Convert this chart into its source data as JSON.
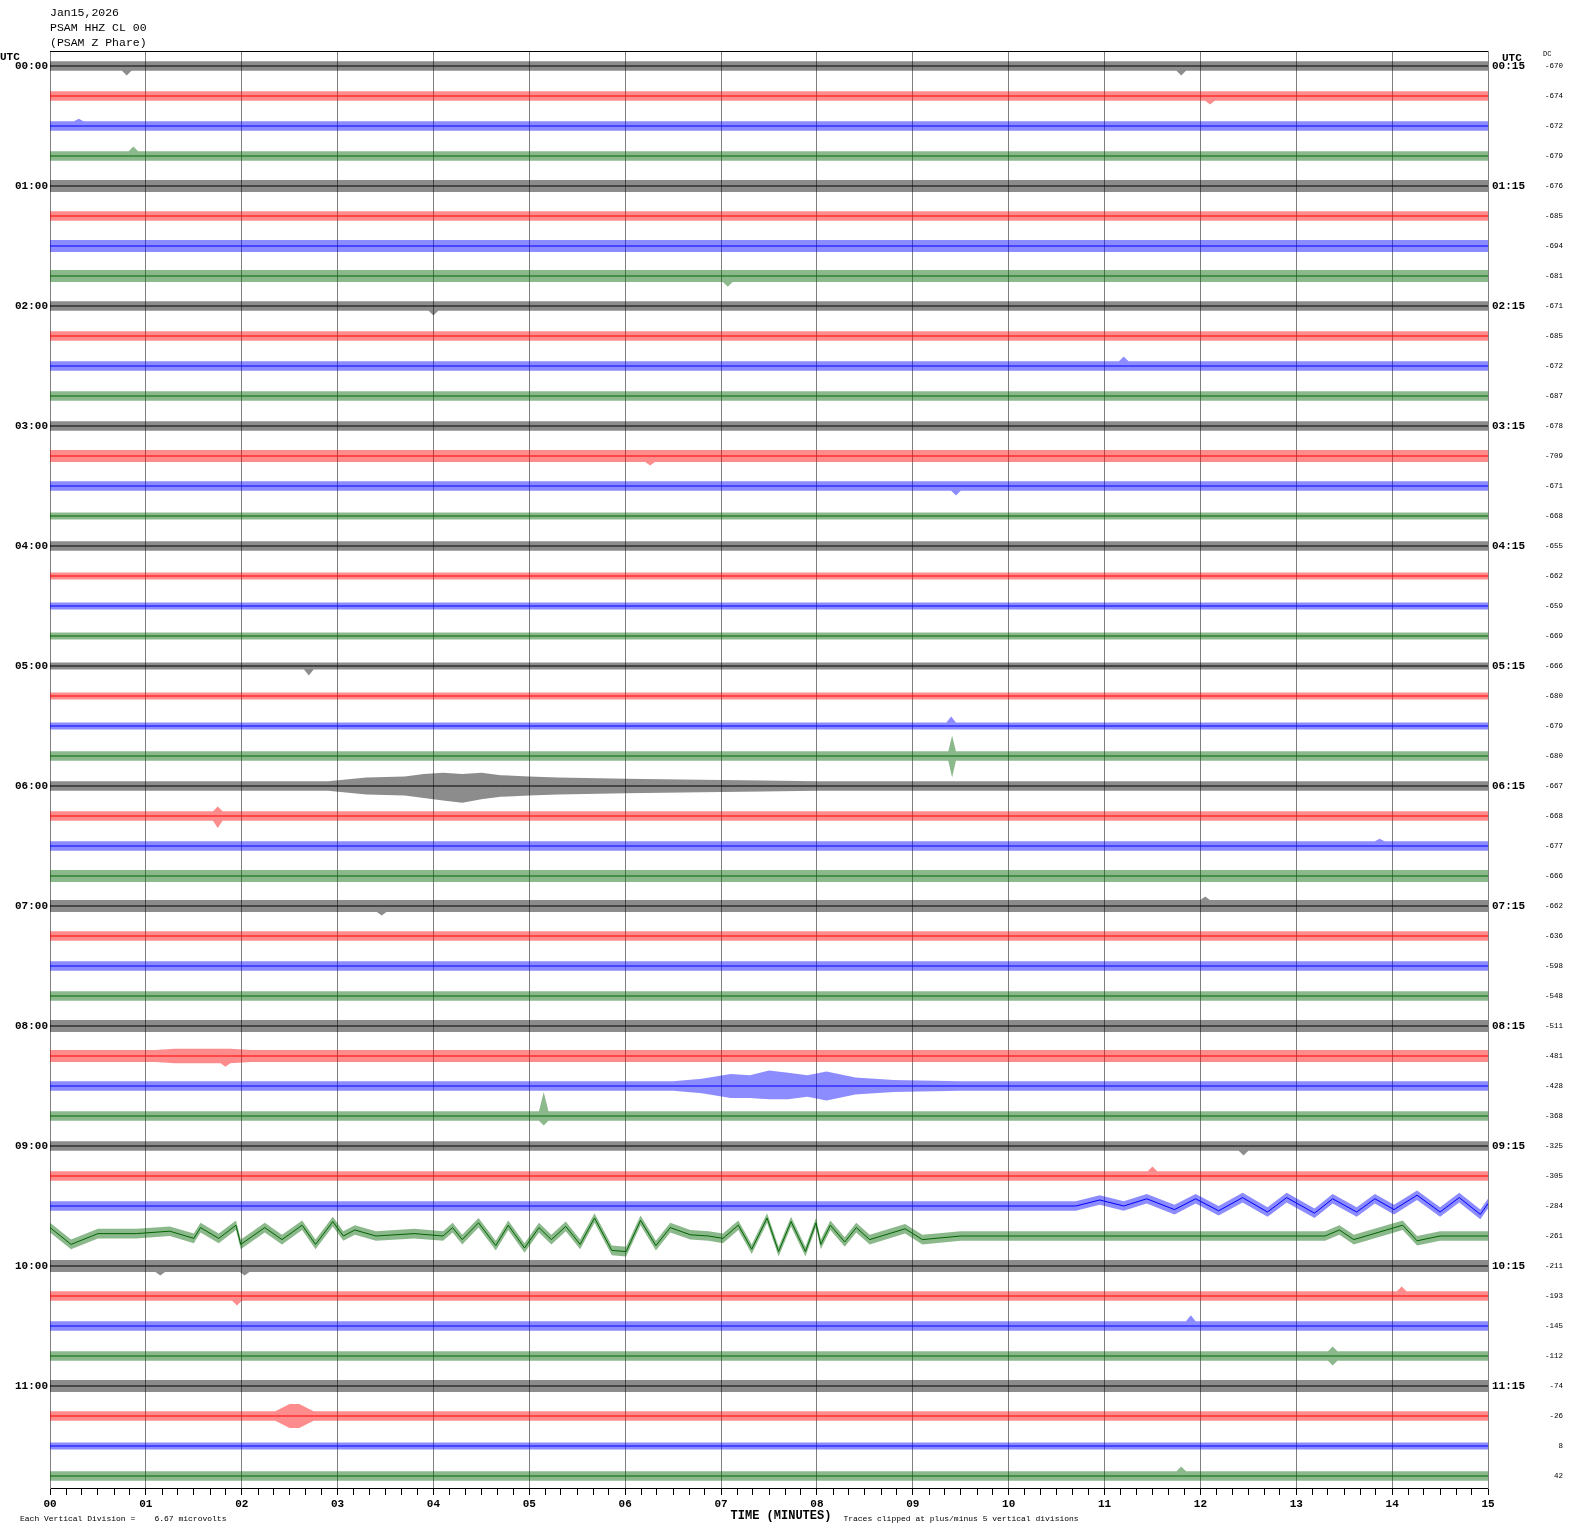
{
  "chart_data": {
    "type": "line",
    "title": "Jan15,2026",
    "subtitle": "PSAM HHZ CL 00",
    "annotations": [
      "(PSAM Z Phare)",
      "DC",
      "Each Vertical Division =    6.67 microvolts",
      "Traces clipped at plus/minus 5 vertical divisions",
      "-670",
      "-674",
      "-672",
      "-679",
      "-676",
      "-685",
      "-694",
      "-681",
      "-671",
      "-685",
      "-672",
      "-687",
      "-678",
      "-709",
      "-671",
      "-668",
      "-655",
      "-662",
      "-659",
      "-669",
      "-666",
      "-680",
      "-679",
      "-680",
      "-667",
      "-668",
      "-677",
      "-666",
      "-662",
      "-636",
      "-598",
      "-548",
      "-511",
      "-481",
      "-428",
      "-368",
      "-325",
      "-305",
      "-284",
      "-261",
      "-211",
      "-193",
      "-145",
      "-112",
      "-74",
      "-26",
      "8",
      "42"
    ],
    "xlabel": "TIME (MINUTES)",
    "ylabel": "UTC",
    "y2label": "UTC",
    "grid": "x",
    "marker": "none",
    "line_style": "solid",
    "xlim": [
      0,
      15
    ],
    "xticks": [
      {
        "value": 0,
        "label": "00"
      },
      {
        "value": 0.17,
        "label": null
      },
      {
        "value": 0.33,
        "label": null
      },
      {
        "value": 0.5,
        "label": null
      },
      {
        "value": 0.67,
        "label": null
      },
      {
        "value": 0.83,
        "label": null
      },
      {
        "value": 1,
        "label": "01"
      },
      {
        "value": 1.17,
        "label": null
      },
      {
        "value": 1.33,
        "label": null
      },
      {
        "value": 1.5,
        "label": null
      },
      {
        "value": 1.67,
        "label": null
      },
      {
        "value": 1.83,
        "label": null
      },
      {
        "value": 2,
        "label": "02"
      },
      {
        "value": 2.17,
        "label": null
      },
      {
        "value": 2.33,
        "label": null
      },
      {
        "value": 2.5,
        "label": null
      },
      {
        "value": 2.67,
        "label": null
      },
      {
        "value": 2.83,
        "label": null
      },
      {
        "value": 3,
        "label": "03"
      },
      {
        "value": 3.17,
        "label": null
      },
      {
        "value": 3.33,
        "label": null
      },
      {
        "value": 3.5,
        "label": null
      },
      {
        "value": 3.67,
        "label": null
      },
      {
        "value": 3.83,
        "label": null
      },
      {
        "value": 4,
        "label": "04"
      },
      {
        "value": 4.17,
        "label": null
      },
      {
        "value": 4.33,
        "label": null
      },
      {
        "value": 4.5,
        "label": null
      },
      {
        "value": 4.67,
        "label": null
      },
      {
        "value": 4.83,
        "label": null
      },
      {
        "value": 5,
        "label": "05"
      },
      {
        "value": 5.17,
        "label": null
      },
      {
        "value": 5.33,
        "label": null
      },
      {
        "value": 5.5,
        "label": null
      },
      {
        "value": 5.67,
        "label": null
      },
      {
        "value": 5.83,
        "label": null
      },
      {
        "value": 6,
        "label": "06"
      },
      {
        "value": 6.17,
        "label": null
      },
      {
        "value": 6.33,
        "label": null
      },
      {
        "value": 6.5,
        "label": null
      },
      {
        "value": 6.67,
        "label": null
      },
      {
        "value": 6.83,
        "label": null
      },
      {
        "value": 7,
        "label": "07"
      },
      {
        "value": 7.17,
        "label": null
      },
      {
        "value": 7.33,
        "label": null
      },
      {
        "value": 7.5,
        "label": null
      },
      {
        "value": 7.67,
        "label": null
      },
      {
        "value": 7.83,
        "label": null
      },
      {
        "value": 8,
        "label": "08"
      },
      {
        "value": 8.17,
        "label": null
      },
      {
        "value": 8.33,
        "label": null
      },
      {
        "value": 8.5,
        "label": null
      },
      {
        "value": 8.67,
        "label": null
      },
      {
        "value": 8.83,
        "label": null
      },
      {
        "value": 9,
        "label": "09"
      },
      {
        "value": 9.17,
        "label": null
      },
      {
        "value": 9.33,
        "label": null
      },
      {
        "value": 9.5,
        "label": null
      },
      {
        "value": 9.67,
        "label": null
      },
      {
        "value": 9.83,
        "label": null
      },
      {
        "value": 10,
        "label": "10"
      },
      {
        "value": 10.17,
        "label": null
      },
      {
        "value": 10.33,
        "label": null
      },
      {
        "value": 10.5,
        "label": null
      },
      {
        "value": 10.67,
        "label": null
      },
      {
        "value": 10.83,
        "label": null
      },
      {
        "value": 11,
        "label": "11"
      },
      {
        "value": 11.17,
        "label": null
      },
      {
        "value": 11.33,
        "label": null
      },
      {
        "value": 11.5,
        "label": null
      },
      {
        "value": 11.67,
        "label": null
      },
      {
        "value": 11.83,
        "label": null
      },
      {
        "value": 12,
        "label": "12"
      },
      {
        "value": 12.17,
        "label": null
      },
      {
        "value": 12.33,
        "label": null
      },
      {
        "value": 12.5,
        "label": null
      },
      {
        "value": 12.67,
        "label": null
      },
      {
        "value": 12.83,
        "label": null
      },
      {
        "value": 13,
        "label": "13"
      },
      {
        "value": 13.17,
        "label": null
      },
      {
        "value": 13.33,
        "label": null
      },
      {
        "value": 13.5,
        "label": null
      },
      {
        "value": 13.67,
        "label": null
      },
      {
        "value": 13.83,
        "label": null
      },
      {
        "value": 14,
        "label": "14"
      },
      {
        "value": 14.17,
        "label": null
      },
      {
        "value": 14.33,
        "label": null
      },
      {
        "value": 14.5,
        "label": null
      },
      {
        "value": 14.67,
        "label": null
      },
      {
        "value": 14.83,
        "label": null
      },
      {
        "value": 15,
        "label": "15"
      }
    ],
    "ylim": [
      11.85,
      -0.125
    ],
    "yticks": [
      {
        "value": 0,
        "label": "00:00"
      },
      {
        "value": 1,
        "label": "01:00"
      },
      {
        "value": 2,
        "label": "02:00"
      },
      {
        "value": 3,
        "label": "03:00"
      },
      {
        "value": 4,
        "label": "04:00"
      },
      {
        "value": 5,
        "label": "05:00"
      },
      {
        "value": 6,
        "label": "06:00"
      },
      {
        "value": 7,
        "label": "07:00"
      },
      {
        "value": 8,
        "label": "08:00"
      },
      {
        "value": 9,
        "label": "09:00"
      },
      {
        "value": 10,
        "label": "10:00"
      },
      {
        "value": 11,
        "label": "11:00"
      }
    ],
    "y2lim": [
      12.1,
      0.125
    ],
    "y2ticks": [
      {
        "value": 0.25,
        "label": "00:15"
      },
      {
        "value": 1.25,
        "label": "01:15"
      },
      {
        "value": 2.25,
        "label": "02:15"
      },
      {
        "value": 3.25,
        "label": "03:15"
      },
      {
        "value": 4.25,
        "label": "04:15"
      },
      {
        "value": 5.25,
        "label": "05:15"
      },
      {
        "value": 6.25,
        "label": "06:15"
      },
      {
        "value": 7.25,
        "label": "07:15"
      },
      {
        "value": 8.25,
        "label": "08:15"
      },
      {
        "value": 9.25,
        "label": "09:15"
      },
      {
        "value": 10.25,
        "label": "10:15"
      },
      {
        "value": 11.25,
        "label": "11:15"
      }
    ],
    "series": [
      {
        "color": "#000000",
        "x": [
          0,
          0.75,
          0.8,
          0.85,
          5,
          10,
          11.75,
          11.8,
          11.85,
          15
        ],
        "values": [
          0,
          0,
          0,
          0,
          0,
          0,
          0,
          0,
          0,
          0
        ],
        "lower": [
          -0.04,
          -0.04,
          -0.04,
          -0.04,
          -0.04,
          -0.04,
          -0.04,
          -0.04,
          -0.04,
          -0.04
        ],
        "upper": [
          0.04,
          0.04,
          0.08,
          0.04,
          0.04,
          0.04,
          0.04,
          0.08,
          0.04,
          0.04
        ]
      },
      {
        "color": "#ff0000",
        "x": [
          0,
          5,
          10,
          12.05,
          12.1,
          12.15,
          15
        ],
        "values": [
          0.25,
          0.25,
          0.25,
          0.25,
          0.25,
          0.25,
          0.25
        ],
        "lower": [
          0.21,
          0.21,
          0.21,
          0.21,
          0.21,
          0.21,
          0.21
        ],
        "upper": [
          0.29,
          0.29,
          0.29,
          0.29,
          0.32,
          0.29,
          0.29
        ]
      },
      {
        "color": "#0000ff",
        "x": [
          0,
          0.25,
          0.3,
          0.35,
          5,
          10,
          15
        ],
        "values": [
          0.5,
          0.5,
          0.5,
          0.5,
          0.5,
          0.5,
          0.5
        ],
        "lower": [
          0.46,
          0.46,
          0.44,
          0.46,
          0.46,
          0.46,
          0.46
        ],
        "upper": [
          0.54,
          0.54,
          0.54,
          0.54,
          0.54,
          0.54,
          0.54
        ]
      },
      {
        "color": "#006400",
        "x": [
          0,
          0.82,
          0.87,
          0.92,
          5,
          10,
          15
        ],
        "values": [
          0.75,
          0.75,
          0.75,
          0.75,
          0.75,
          0.75,
          0.75
        ],
        "lower": [
          0.71,
          0.71,
          0.67,
          0.71,
          0.71,
          0.71,
          0.71
        ],
        "upper": [
          0.79,
          0.79,
          0.79,
          0.79,
          0.79,
          0.79,
          0.79
        ]
      },
      {
        "color": "#000000",
        "x": [
          0,
          5,
          10,
          15
        ],
        "values": [
          1,
          1,
          1,
          1
        ],
        "lower": [
          0.95,
          0.95,
          0.95,
          0.95
        ],
        "upper": [
          1.05,
          1.05,
          1.05,
          1.05
        ]
      },
      {
        "color": "#ff0000",
        "x": [
          0,
          5,
          10,
          15
        ],
        "values": [
          1.25,
          1.25,
          1.25,
          1.25
        ],
        "lower": [
          1.21,
          1.21,
          1.21,
          1.21
        ],
        "upper": [
          1.29,
          1.29,
          1.29,
          1.29
        ]
      },
      {
        "color": "#0000ff",
        "x": [
          0,
          5,
          10,
          15
        ],
        "values": [
          1.5,
          1.5,
          1.5,
          1.5
        ],
        "lower": [
          1.45,
          1.45,
          1.45,
          1.45
        ],
        "upper": [
          1.55,
          1.55,
          1.55,
          1.55
        ]
      },
      {
        "color": "#006400",
        "x": [
          0,
          5,
          7.02,
          7.07,
          7.12,
          10,
          15
        ],
        "values": [
          1.75,
          1.75,
          1.75,
          1.75,
          1.75,
          1.75,
          1.75
        ],
        "lower": [
          1.7,
          1.7,
          1.7,
          1.7,
          1.7,
          1.7,
          1.7
        ],
        "upper": [
          1.8,
          1.8,
          1.8,
          1.84,
          1.8,
          1.8,
          1.8
        ]
      },
      {
        "color": "#000000",
        "x": [
          0,
          3.95,
          4,
          4.05,
          10,
          15
        ],
        "values": [
          2,
          2,
          2,
          2,
          2,
          2
        ],
        "lower": [
          1.96,
          1.96,
          1.96,
          1.96,
          1.96,
          1.96
        ],
        "upper": [
          2.04,
          2.04,
          2.08,
          2.04,
          2.04,
          2.04
        ]
      },
      {
        "color": "#ff0000",
        "x": [
          0,
          5,
          10,
          15
        ],
        "values": [
          2.25,
          2.25,
          2.25,
          2.25
        ],
        "lower": [
          2.21,
          2.21,
          2.21,
          2.21
        ],
        "upper": [
          2.29,
          2.29,
          2.29,
          2.29
        ]
      },
      {
        "color": "#0000ff",
        "x": [
          0,
          5,
          11.15,
          11.2,
          11.25,
          15
        ],
        "values": [
          2.5,
          2.5,
          2.5,
          2.5,
          2.5,
          2.5
        ],
        "lower": [
          2.46,
          2.46,
          2.46,
          2.42,
          2.46,
          2.46
        ],
        "upper": [
          2.54,
          2.54,
          2.54,
          2.54,
          2.54,
          2.54
        ]
      },
      {
        "color": "#006400",
        "x": [
          0,
          5,
          10,
          15
        ],
        "values": [
          2.75,
          2.75,
          2.75,
          2.75
        ],
        "lower": [
          2.71,
          2.71,
          2.71,
          2.71
        ],
        "upper": [
          2.79,
          2.79,
          2.79,
          2.79
        ]
      },
      {
        "color": "#000000",
        "x": [
          0,
          5,
          10,
          15
        ],
        "values": [
          3,
          3,
          3,
          3
        ],
        "lower": [
          2.96,
          2.96,
          2.96,
          2.96
        ],
        "upper": [
          3.04,
          3.04,
          3.04,
          3.04
        ]
      },
      {
        "color": "#ff0000",
        "x": [
          0,
          5,
          6.21,
          6.26,
          6.31,
          10,
          15
        ],
        "values": [
          3.25,
          3.25,
          3.25,
          3.25,
          3.25,
          3.25,
          3.25
        ],
        "lower": [
          3.2,
          3.2,
          3.2,
          3.2,
          3.2,
          3.2,
          3.2
        ],
        "upper": [
          3.3,
          3.3,
          3.3,
          3.33,
          3.3,
          3.3,
          3.3
        ]
      },
      {
        "color": "#0000ff",
        "x": [
          0,
          5,
          9.4,
          9.45,
          9.5,
          15
        ],
        "values": [
          3.5,
          3.5,
          3.5,
          3.5,
          3.5,
          3.5
        ],
        "lower": [
          3.46,
          3.46,
          3.46,
          3.46,
          3.46,
          3.46
        ],
        "upper": [
          3.54,
          3.54,
          3.54,
          3.58,
          3.54,
          3.54
        ]
      },
      {
        "color": "#006400",
        "x": [
          0,
          5,
          10,
          15
        ],
        "values": [
          3.75,
          3.75,
          3.75,
          3.75
        ],
        "lower": [
          3.72,
          3.72,
          3.72,
          3.72
        ],
        "upper": [
          3.78,
          3.78,
          3.78,
          3.78
        ]
      },
      {
        "color": "#000000",
        "x": [
          0,
          5,
          10,
          15
        ],
        "values": [
          4,
          4,
          4,
          4
        ],
        "lower": [
          3.96,
          3.96,
          3.96,
          3.96
        ],
        "upper": [
          4.04,
          4.04,
          4.04,
          4.04
        ]
      },
      {
        "color": "#ff0000",
        "x": [
          0,
          5,
          10,
          15
        ],
        "values": [
          4.25,
          4.25,
          4.25,
          4.25
        ],
        "lower": [
          4.22,
          4.22,
          4.22,
          4.22
        ],
        "upper": [
          4.28,
          4.28,
          4.28,
          4.28
        ]
      },
      {
        "color": "#0000ff",
        "x": [
          0,
          5,
          10,
          15
        ],
        "values": [
          4.5,
          4.5,
          4.5,
          4.5
        ],
        "lower": [
          4.47,
          4.47,
          4.47,
          4.47
        ],
        "upper": [
          4.53,
          4.53,
          4.53,
          4.53
        ]
      },
      {
        "color": "#006400",
        "x": [
          0,
          5,
          10,
          15
        ],
        "values": [
          4.75,
          4.75,
          4.75,
          4.75
        ],
        "lower": [
          4.72,
          4.72,
          4.72,
          4.72
        ],
        "upper": [
          4.78,
          4.78,
          4.78,
          4.78
        ]
      },
      {
        "color": "#000000",
        "x": [
          0,
          2.65,
          2.7,
          2.75,
          10,
          15
        ],
        "values": [
          5,
          5,
          5,
          5,
          5,
          5
        ],
        "lower": [
          4.97,
          4.97,
          4.97,
          4.97,
          4.97,
          4.97
        ],
        "upper": [
          5.03,
          5.03,
          5.08,
          5.03,
          5.03,
          5.03
        ]
      },
      {
        "color": "#ff0000",
        "x": [
          0,
          5,
          10,
          15
        ],
        "values": [
          5.25,
          5.25,
          5.25,
          5.25
        ],
        "lower": [
          5.22,
          5.22,
          5.22,
          5.22
        ],
        "upper": [
          5.28,
          5.28,
          5.28,
          5.28
        ]
      },
      {
        "color": "#0000ff",
        "x": [
          0,
          5,
          9.35,
          9.4,
          9.45,
          15
        ],
        "values": [
          5.5,
          5.5,
          5.5,
          5.5,
          5.5,
          5.5
        ],
        "lower": [
          5.47,
          5.47,
          5.47,
          5.42,
          5.47,
          5.47
        ],
        "upper": [
          5.53,
          5.53,
          5.53,
          5.53,
          5.53,
          5.53
        ]
      },
      {
        "color": "#006400",
        "x": [
          0,
          5,
          9.37,
          9.41,
          9.45,
          15
        ],
        "values": [
          5.75,
          5.75,
          5.75,
          5.75,
          5.75,
          5.75
        ],
        "lower": [
          5.71,
          5.71,
          5.71,
          5.58,
          5.71,
          5.71
        ],
        "upper": [
          5.79,
          5.79,
          5.79,
          5.93,
          5.79,
          5.79
        ]
      },
      {
        "color": "#000000",
        "x": [
          0,
          2.9,
          3.3,
          3.7,
          3.9,
          4.1,
          4.3,
          4.5,
          4.7,
          5,
          5.3,
          6,
          7,
          8,
          15
        ],
        "values": [
          6,
          6,
          6,
          6,
          6,
          6,
          6,
          6,
          6,
          6,
          6,
          6,
          6,
          6,
          6
        ],
        "lower": [
          5.96,
          5.96,
          5.93,
          5.92,
          5.9,
          5.89,
          5.9,
          5.89,
          5.91,
          5.92,
          5.93,
          5.94,
          5.95,
          5.96,
          5.96
        ],
        "upper": [
          6.04,
          6.04,
          6.07,
          6.08,
          6.1,
          6.12,
          6.14,
          6.11,
          6.09,
          6.08,
          6.07,
          6.06,
          6.05,
          6.04,
          6.04
        ]
      },
      {
        "color": "#ff0000",
        "x": [
          0,
          1.7,
          1.75,
          1.8,
          10,
          15
        ],
        "values": [
          6.25,
          6.25,
          6.25,
          6.25,
          6.25,
          6.25
        ],
        "lower": [
          6.21,
          6.21,
          6.17,
          6.21,
          6.21,
          6.21
        ],
        "upper": [
          6.29,
          6.29,
          6.35,
          6.29,
          6.29,
          6.29
        ]
      },
      {
        "color": "#0000ff",
        "x": [
          0,
          5,
          10,
          13.82,
          13.87,
          13.92,
          15
        ],
        "values": [
          6.5,
          6.5,
          6.5,
          6.5,
          6.5,
          6.5,
          6.5
        ],
        "lower": [
          6.46,
          6.46,
          6.46,
          6.46,
          6.44,
          6.46,
          6.46
        ],
        "upper": [
          6.54,
          6.54,
          6.54,
          6.54,
          6.54,
          6.54,
          6.54
        ]
      },
      {
        "color": "#006400",
        "x": [
          0,
          5,
          10,
          15
        ],
        "values": [
          6.75,
          6.75,
          6.75,
          6.75
        ],
        "lower": [
          6.7,
          6.7,
          6.7,
          6.7
        ],
        "upper": [
          6.8,
          6.8,
          6.8,
          6.8
        ]
      },
      {
        "color": "#000000",
        "x": [
          0,
          3.41,
          3.46,
          3.51,
          10,
          12,
          12.05,
          12.1,
          15
        ],
        "values": [
          7,
          7,
          7,
          7,
          7,
          7,
          7,
          7,
          7
        ],
        "lower": [
          6.95,
          6.95,
          6.95,
          6.95,
          6.95,
          6.95,
          6.92,
          6.95,
          6.95
        ],
        "upper": [
          7.05,
          7.05,
          7.08,
          7.05,
          7.05,
          7.05,
          7.05,
          7.05,
          7.05
        ]
      },
      {
        "color": "#ff0000",
        "x": [
          0,
          5,
          10,
          15
        ],
        "values": [
          7.25,
          7.25,
          7.25,
          7.25
        ],
        "lower": [
          7.21,
          7.21,
          7.21,
          7.21
        ],
        "upper": [
          7.29,
          7.29,
          7.29,
          7.29
        ]
      },
      {
        "color": "#0000ff",
        "x": [
          0,
          5,
          10,
          15
        ],
        "values": [
          7.5,
          7.5,
          7.5,
          7.5
        ],
        "lower": [
          7.46,
          7.46,
          7.46,
          7.46
        ],
        "upper": [
          7.54,
          7.54,
          7.54,
          7.54
        ]
      },
      {
        "color": "#006400",
        "x": [
          0,
          5,
          10,
          15
        ],
        "values": [
          7.75,
          7.75,
          7.75,
          7.75
        ],
        "lower": [
          7.71,
          7.71,
          7.71,
          7.71
        ],
        "upper": [
          7.79,
          7.79,
          7.79,
          7.79
        ]
      },
      {
        "color": "#000000",
        "x": [
          0,
          5,
          10,
          15
        ],
        "values": [
          8,
          8,
          8,
          8
        ],
        "lower": [
          7.95,
          7.95,
          7.95,
          7.95
        ],
        "upper": [
          8.05,
          8.05,
          8.05,
          8.05
        ]
      },
      {
        "color": "#ff0000",
        "x": [
          0,
          1.1,
          1.3,
          1.78,
          1.83,
          1.88,
          2.1,
          10,
          15
        ],
        "values": [
          8.25,
          8.25,
          8.25,
          8.25,
          8.25,
          8.25,
          8.25,
          8.25,
          8.25
        ],
        "lower": [
          8.2,
          8.2,
          8.19,
          8.19,
          8.19,
          8.19,
          8.2,
          8.2,
          8.2
        ],
        "upper": [
          8.3,
          8.3,
          8.31,
          8.31,
          8.34,
          8.31,
          8.3,
          8.3,
          8.3
        ]
      },
      {
        "color": "#0000ff",
        "x": [
          0,
          6.5,
          6.8,
          7.1,
          7.3,
          7.5,
          7.7,
          7.9,
          8.1,
          8.4,
          8.8,
          9.5,
          15
        ],
        "values": [
          8.5,
          8.5,
          8.5,
          8.5,
          8.5,
          8.5,
          8.5,
          8.5,
          8.5,
          8.5,
          8.5,
          8.5,
          8.5
        ],
        "lower": [
          8.46,
          8.46,
          8.44,
          8.4,
          8.41,
          8.37,
          8.39,
          8.41,
          8.38,
          8.43,
          8.45,
          8.46,
          8.46
        ],
        "upper": [
          8.54,
          8.54,
          8.56,
          8.6,
          8.6,
          8.61,
          8.61,
          8.59,
          8.62,
          8.57,
          8.55,
          8.54,
          8.54
        ]
      },
      {
        "color": "#006400",
        "x": [
          0,
          5.1,
          5.15,
          5.2,
          10,
          15
        ],
        "values": [
          8.75,
          8.75,
          8.75,
          8.75,
          8.75,
          8.75
        ],
        "lower": [
          8.71,
          8.71,
          8.55,
          8.71,
          8.71,
          8.71
        ],
        "upper": [
          8.79,
          8.79,
          8.83,
          8.79,
          8.79,
          8.79
        ]
      },
      {
        "color": "#000000",
        "x": [
          0,
          5,
          10,
          12.4,
          12.45,
          12.5,
          15
        ],
        "values": [
          9,
          9,
          9,
          9,
          9,
          9,
          9
        ],
        "lower": [
          8.96,
          8.96,
          8.96,
          8.96,
          8.96,
          8.96,
          8.96
        ],
        "upper": [
          9.04,
          9.04,
          9.04,
          9.04,
          9.08,
          9.04,
          9.04
        ]
      },
      {
        "color": "#ff0000",
        "x": [
          0,
          5,
          11.45,
          11.5,
          11.55,
          15
        ],
        "values": [
          9.25,
          9.25,
          9.25,
          9.25,
          9.25,
          9.25
        ],
        "lower": [
          9.21,
          9.21,
          9.21,
          9.17,
          9.21,
          9.21
        ],
        "upper": [
          9.29,
          9.29,
          9.29,
          9.29,
          9.29,
          9.29
        ]
      },
      {
        "color": "#0000ff",
        "x": [
          0,
          10.7,
          10.95,
          11.2,
          11.44,
          11.73,
          11.95,
          12.19,
          12.44,
          12.7,
          12.9,
          13.19,
          13.38,
          13.63,
          13.82,
          14.02,
          14.26,
          14.5,
          14.7,
          14.92,
          15
        ],
        "values": [
          9.5,
          9.5,
          9.45,
          9.5,
          9.44,
          9.53,
          9.44,
          9.54,
          9.43,
          9.55,
          9.43,
          9.56,
          9.44,
          9.55,
          9.44,
          9.53,
          9.41,
          9.55,
          9.43,
          9.57,
          9.48
        ],
        "lower": [
          9.46,
          9.46,
          9.41,
          9.46,
          9.4,
          9.49,
          9.4,
          9.5,
          9.39,
          9.51,
          9.39,
          9.52,
          9.4,
          9.51,
          9.4,
          9.49,
          9.37,
          9.51,
          9.39,
          9.53,
          9.44
        ],
        "upper": [
          9.54,
          9.54,
          9.49,
          9.54,
          9.48,
          9.57,
          9.48,
          9.58,
          9.47,
          9.59,
          9.47,
          9.6,
          9.48,
          9.59,
          9.48,
          9.57,
          9.45,
          9.59,
          9.47,
          9.61,
          9.52
        ]
      },
      {
        "color": "#006400",
        "x": [
          0,
          0.22,
          0.5,
          0.9,
          1.25,
          1.5,
          1.57,
          1.76,
          1.94,
          1.99,
          2.24,
          2.42,
          2.63,
          2.77,
          2.95,
          3.06,
          3.18,
          3.4,
          3.8,
          4.1,
          4.2,
          4.3,
          4.47,
          4.65,
          4.78,
          4.95,
          5.1,
          5.23,
          5.38,
          5.53,
          5.68,
          5.86,
          6.01,
          6.16,
          6.32,
          6.47,
          6.68,
          6.87,
          7.02,
          7.18,
          7.32,
          7.48,
          7.6,
          7.73,
          7.88,
          7.99,
          8.04,
          8.14,
          8.29,
          8.41,
          8.55,
          8.92,
          9.1,
          9.5,
          11,
          13.3,
          13.45,
          13.6,
          14.11,
          14.26,
          14.5,
          15
        ],
        "values": [
          9.68,
          9.82,
          9.73,
          9.73,
          9.71,
          9.77,
          9.68,
          9.77,
          9.66,
          9.82,
          9.68,
          9.78,
          9.66,
          9.82,
          9.63,
          9.75,
          9.7,
          9.75,
          9.73,
          9.75,
          9.68,
          9.78,
          9.64,
          9.83,
          9.66,
          9.85,
          9.68,
          9.78,
          9.67,
          9.82,
          9.6,
          9.87,
          9.88,
          9.62,
          9.83,
          9.68,
          9.74,
          9.75,
          9.77,
          9.66,
          9.86,
          9.6,
          9.88,
          9.63,
          9.88,
          9.64,
          9.82,
          9.66,
          9.8,
          9.68,
          9.78,
          9.69,
          9.78,
          9.75,
          9.75,
          9.75,
          9.7,
          9.78,
          9.66,
          9.79,
          9.75,
          9.75
        ],
        "lower": [
          9.64,
          9.78,
          9.69,
          9.69,
          9.67,
          9.73,
          9.64,
          9.73,
          9.62,
          9.78,
          9.64,
          9.74,
          9.62,
          9.78,
          9.59,
          9.71,
          9.66,
          9.71,
          9.69,
          9.71,
          9.64,
          9.74,
          9.6,
          9.79,
          9.62,
          9.81,
          9.64,
          9.74,
          9.63,
          9.78,
          9.56,
          9.83,
          9.84,
          9.58,
          9.79,
          9.64,
          9.7,
          9.71,
          9.73,
          9.62,
          9.82,
          9.56,
          9.84,
          9.59,
          9.84,
          9.6,
          9.78,
          9.62,
          9.76,
          9.64,
          9.74,
          9.65,
          9.74,
          9.71,
          9.71,
          9.71,
          9.66,
          9.74,
          9.62,
          9.75,
          9.71,
          9.71
        ],
        "upper": [
          9.72,
          9.86,
          9.77,
          9.77,
          9.75,
          9.81,
          9.72,
          9.81,
          9.7,
          9.86,
          9.72,
          9.82,
          9.7,
          9.86,
          9.67,
          9.79,
          9.74,
          9.79,
          9.77,
          9.79,
          9.72,
          9.82,
          9.68,
          9.87,
          9.7,
          9.89,
          9.72,
          9.82,
          9.71,
          9.86,
          9.64,
          9.91,
          9.92,
          9.66,
          9.87,
          9.72,
          9.78,
          9.79,
          9.81,
          9.7,
          9.9,
          9.64,
          9.92,
          9.67,
          9.92,
          9.68,
          9.86,
          9.7,
          9.84,
          9.72,
          9.82,
          9.73,
          9.82,
          9.79,
          9.79,
          9.79,
          9.74,
          9.82,
          9.7,
          9.83,
          9.79,
          9.79
        ]
      },
      {
        "color": "#000000",
        "x": [
          0,
          1.1,
          1.15,
          1.2,
          1.98,
          2.03,
          2.08,
          10,
          15
        ],
        "values": [
          10,
          10,
          10,
          10,
          10,
          10,
          10,
          10,
          10
        ],
        "lower": [
          9.95,
          9.95,
          9.95,
          9.95,
          9.95,
          9.95,
          9.95,
          9.95,
          9.95
        ],
        "upper": [
          10.05,
          10.05,
          10.08,
          10.05,
          10.05,
          10.08,
          10.05,
          10.05,
          10.05
        ]
      },
      {
        "color": "#ff0000",
        "x": [
          0,
          1.9,
          1.95,
          2,
          10,
          14.05,
          14.1,
          14.15,
          15
        ],
        "values": [
          10.25,
          10.25,
          10.25,
          10.25,
          10.25,
          10.25,
          10.25,
          10.25,
          10.25
        ],
        "lower": [
          10.21,
          10.21,
          10.21,
          10.21,
          10.21,
          10.21,
          10.17,
          10.21,
          10.21
        ],
        "upper": [
          10.29,
          10.29,
          10.33,
          10.29,
          10.29,
          10.29,
          10.29,
          10.29,
          10.29
        ]
      },
      {
        "color": "#0000ff",
        "x": [
          0,
          5,
          11.85,
          11.9,
          11.95,
          15
        ],
        "values": [
          10.5,
          10.5,
          10.5,
          10.5,
          10.5,
          10.5
        ],
        "lower": [
          10.46,
          10.46,
          10.46,
          10.41,
          10.46,
          10.46
        ],
        "upper": [
          10.54,
          10.54,
          10.54,
          10.54,
          10.54,
          10.54
        ]
      },
      {
        "color": "#006400",
        "x": [
          0,
          5,
          10,
          13.33,
          13.38,
          13.43,
          15
        ],
        "values": [
          10.75,
          10.75,
          10.75,
          10.75,
          10.75,
          10.75,
          10.75
        ],
        "lower": [
          10.71,
          10.71,
          10.71,
          10.71,
          10.67,
          10.71,
          10.71
        ],
        "upper": [
          10.79,
          10.79,
          10.79,
          10.79,
          10.83,
          10.79,
          10.79
        ]
      },
      {
        "color": "#000000",
        "x": [
          0,
          5,
          10,
          15
        ],
        "values": [
          11,
          11,
          11,
          11
        ],
        "lower": [
          10.95,
          10.95,
          10.95,
          10.95
        ],
        "upper": [
          11.05,
          11.05,
          11.05,
          11.05
        ]
      },
      {
        "color": "#ff0000",
        "x": [
          0,
          2.35,
          2.5,
          2.6,
          2.75,
          10,
          15
        ],
        "values": [
          11.25,
          11.25,
          11.25,
          11.25,
          11.25,
          11.25,
          11.25
        ],
        "lower": [
          11.21,
          11.21,
          11.15,
          11.15,
          11.21,
          11.21,
          11.21
        ],
        "upper": [
          11.29,
          11.29,
          11.35,
          11.35,
          11.29,
          11.29,
          11.29
        ]
      },
      {
        "color": "#0000ff",
        "x": [
          0,
          5,
          10,
          15
        ],
        "values": [
          11.5,
          11.5,
          11.5,
          11.5
        ],
        "lower": [
          11.47,
          11.47,
          11.47,
          11.47
        ],
        "upper": [
          11.53,
          11.53,
          11.53,
          11.53
        ]
      },
      {
        "color": "#006400",
        "x": [
          0,
          5,
          11.75,
          11.8,
          11.85,
          15
        ],
        "values": [
          11.75,
          11.75,
          11.75,
          11.75,
          11.75,
          11.75
        ],
        "lower": [
          11.71,
          11.71,
          11.71,
          11.67,
          11.71,
          11.71
        ],
        "upper": [
          11.79,
          11.79,
          11.79,
          11.79,
          11.79,
          11.79
        ]
      }
    ]
  }
}
